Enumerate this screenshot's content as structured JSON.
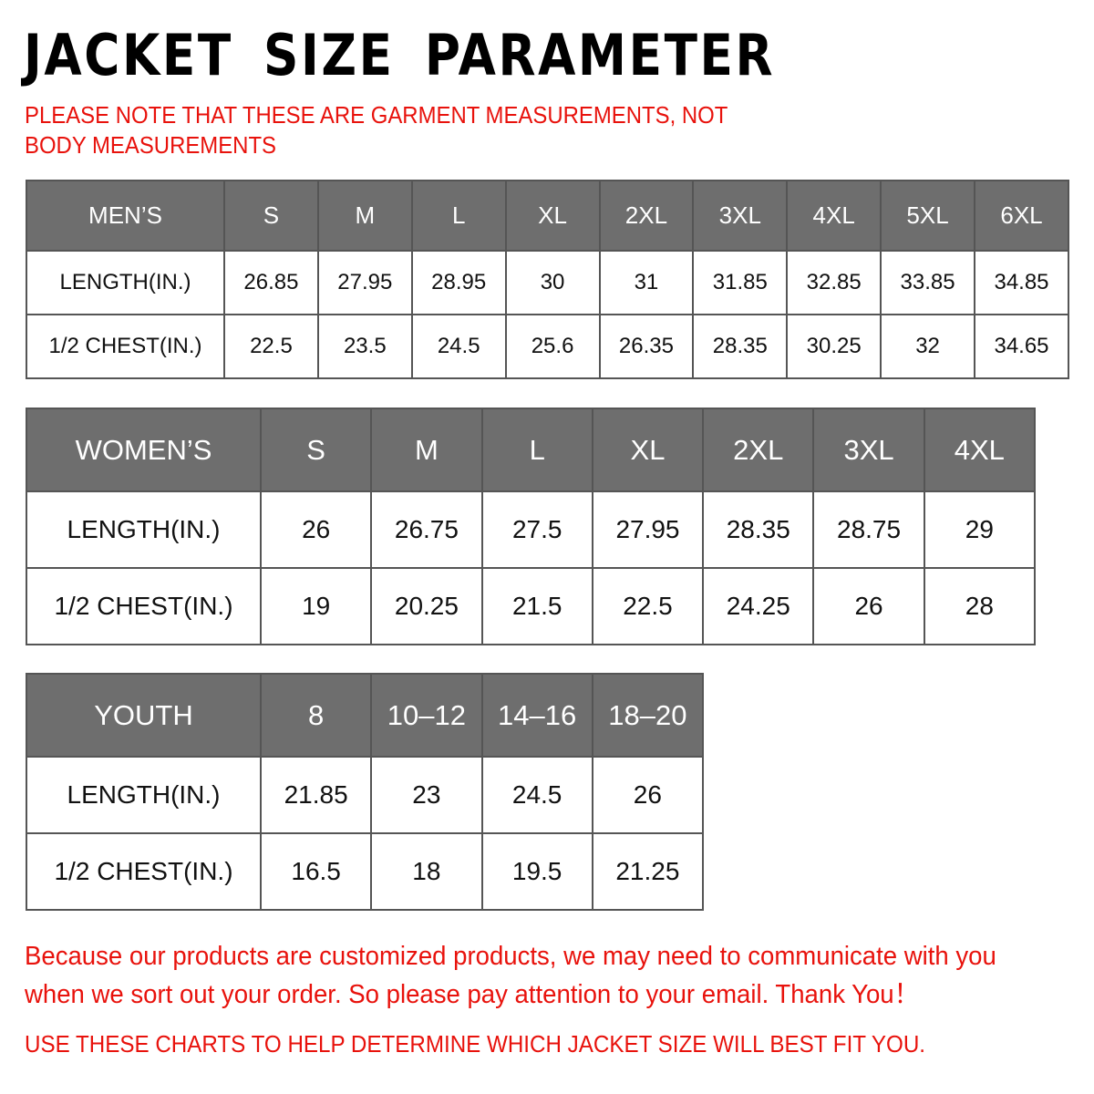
{
  "title": "JACKET SIZE PARAMETER",
  "note": "PLEASE NOTE THAT THESE ARE GARMENT MEASUREMENTS, NOT BODY MEASUREMENTS",
  "colors": {
    "header_bg": "#6e6e6e",
    "accent_red": "#e8120c"
  },
  "tables": [
    {
      "header": "MEN’S",
      "sizes": [
        "S",
        "M",
        "L",
        "XL",
        "2XL",
        "3XL",
        "4XL",
        "5XL",
        "6XL"
      ],
      "rows": [
        {
          "label": "LENGTH(IN.)",
          "values": [
            "26.85",
            "27.95",
            "28.95",
            "30",
            "31",
            "31.85",
            "32.85",
            "33.85",
            "34.85"
          ]
        },
        {
          "label": "1/2 CHEST(IN.)",
          "values": [
            "22.5",
            "23.5",
            "24.5",
            "25.6",
            "26.35",
            "28.35",
            "30.25",
            "32",
            "34.65"
          ]
        }
      ]
    },
    {
      "header": "WOMEN’S",
      "sizes": [
        "S",
        "M",
        "L",
        "XL",
        "2XL",
        "3XL",
        "4XL"
      ],
      "rows": [
        {
          "label": "LENGTH(IN.)",
          "values": [
            "26",
            "26.75",
            "27.5",
            "27.95",
            "28.35",
            "28.75",
            "29"
          ]
        },
        {
          "label": "1/2 CHEST(IN.)",
          "values": [
            "19",
            "20.25",
            "21.5",
            "22.5",
            "24.25",
            "26",
            "28"
          ]
        }
      ]
    },
    {
      "header": "YOUTH",
      "sizes": [
        "8",
        "10–12",
        "14–16",
        "18–20"
      ],
      "rows": [
        {
          "label": "LENGTH(IN.)",
          "values": [
            "21.85",
            "23",
            "24.5",
            "26"
          ]
        },
        {
          "label": "1/2 CHEST(IN.)",
          "values": [
            "16.5",
            "18",
            "19.5",
            "21.25"
          ]
        }
      ]
    }
  ],
  "footer": {
    "message": "Because our products are customized products, we may need to communicate with you when we sort out your order. So please pay attention to your email. Thank You！",
    "instruction": "USE THESE CHARTS TO HELP DETERMINE WHICH JACKET SIZE WILL BEST FIT YOU."
  }
}
